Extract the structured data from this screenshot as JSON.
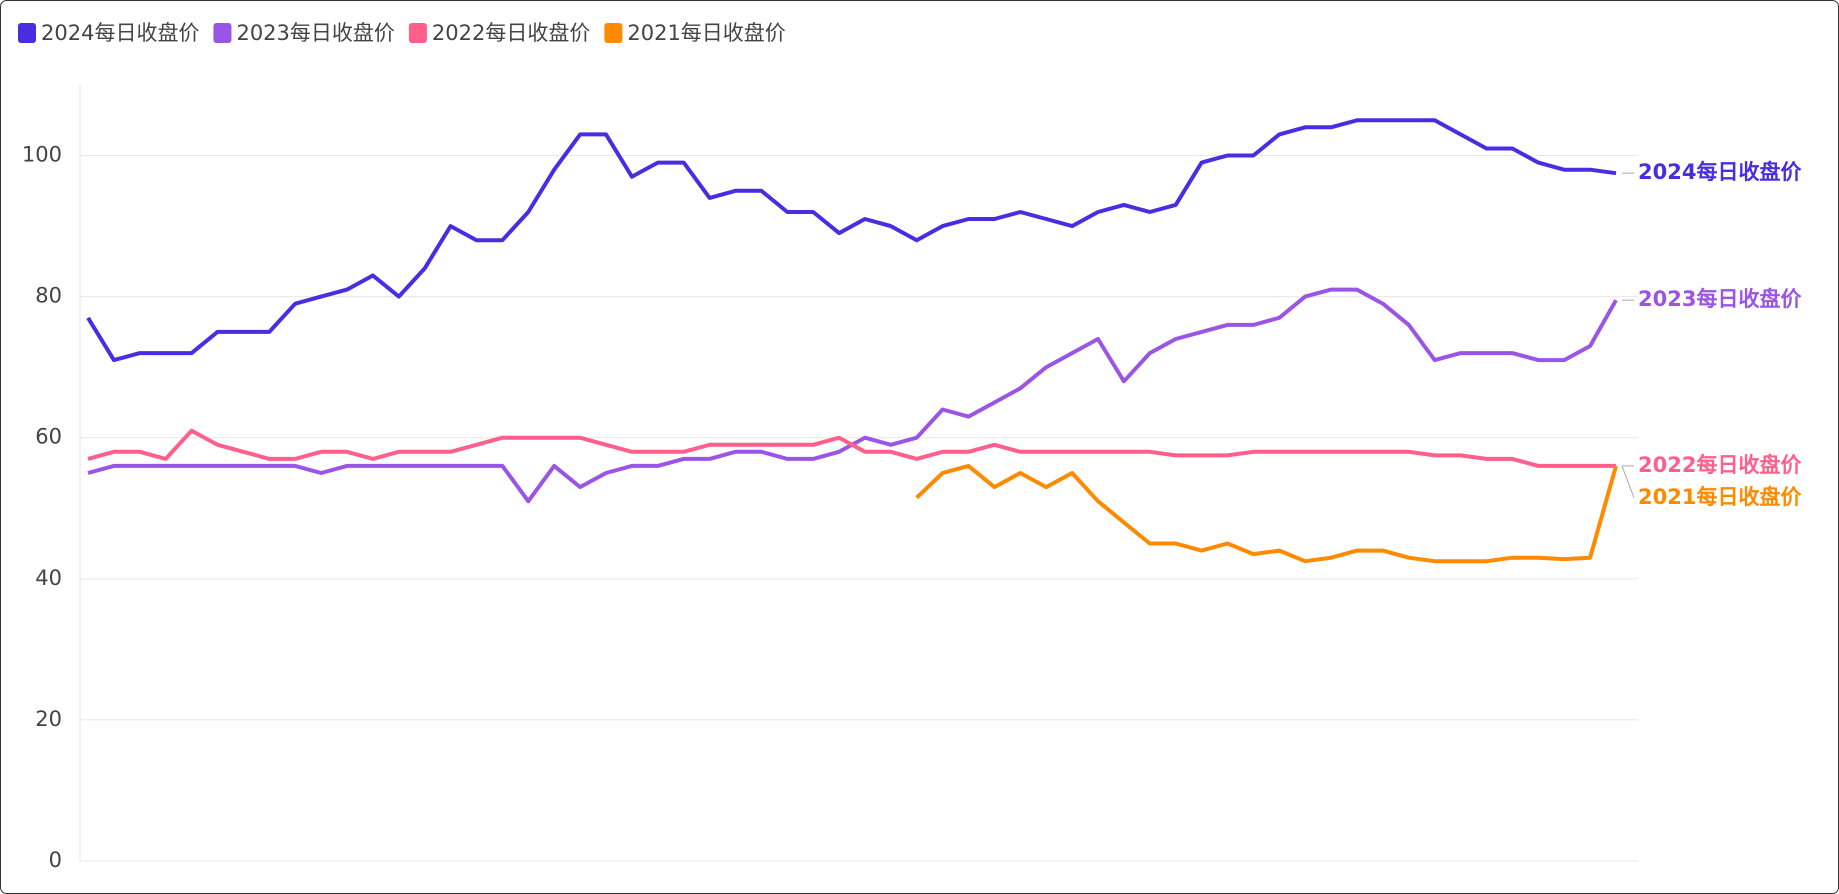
{
  "chart_data": {
    "type": "line",
    "categories": [
      null,
      null,
      null,
      null,
      null,
      null,
      null,
      null,
      null,
      null,
      null,
      null,
      null,
      null,
      null,
      null,
      null,
      null,
      null,
      null,
      null,
      null,
      null,
      null,
      null,
      null,
      null,
      null,
      null,
      null,
      null,
      null,
      null,
      null,
      null,
      null,
      null,
      null,
      null,
      null,
      null,
      null,
      null,
      null,
      null,
      null,
      null,
      null,
      null,
      null,
      null,
      null,
      null,
      null,
      null,
      null,
      null,
      null,
      null,
      null
    ],
    "series": [
      {
        "name": "2024每日收盘价",
        "color": "#4a2ce3",
        "values": [
          77,
          71,
          72,
          72,
          72,
          75,
          75,
          75,
          79,
          80,
          81,
          83,
          80,
          84,
          90,
          88,
          88,
          92,
          98,
          103,
          103,
          97,
          99,
          99,
          94,
          95,
          95,
          92,
          92,
          89,
          91,
          90,
          88,
          90,
          91,
          91,
          92,
          91,
          90,
          92,
          93,
          92,
          93,
          99,
          100,
          100,
          103,
          104,
          104,
          105,
          105,
          105,
          105,
          103,
          101,
          101,
          99,
          98,
          98,
          97.5
        ]
      },
      {
        "name": "2023每日收盘价",
        "color": "#9b55e6",
        "values": [
          55,
          56,
          56,
          56,
          56,
          56,
          56,
          56,
          56,
          55,
          56,
          56,
          56,
          56,
          56,
          56,
          56,
          51,
          56,
          53,
          55,
          56,
          56,
          57,
          57,
          58,
          58,
          57,
          57,
          58,
          60,
          59,
          60,
          64,
          63,
          65,
          67,
          70,
          72,
          74,
          68,
          72,
          74,
          75,
          76,
          76,
          77,
          80,
          81,
          81,
          79,
          76,
          71,
          72,
          72,
          72,
          71,
          71,
          73,
          79.5
        ]
      },
      {
        "name": "2022每日收盘价",
        "color": "#ff5f8a",
        "values": [
          57,
          58,
          58,
          57,
          61,
          59,
          58,
          57,
          57,
          58,
          58,
          57,
          58,
          58,
          58,
          59,
          60,
          60,
          60,
          60,
          59,
          58,
          58,
          58,
          59,
          59,
          59,
          59,
          59,
          60,
          58,
          58,
          57,
          58,
          58,
          59,
          58,
          58,
          58,
          58,
          58,
          58,
          57.5,
          57.5,
          57.5,
          58,
          58,
          58,
          58,
          58,
          58,
          58,
          57.5,
          57.5,
          57,
          57,
          56,
          56,
          56,
          56
        ]
      },
      {
        "name": "2021每日收盘价",
        "color": "#ff8a00",
        "values": [
          null,
          null,
          null,
          null,
          null,
          null,
          null,
          null,
          null,
          null,
          null,
          null,
          null,
          null,
          null,
          null,
          null,
          null,
          null,
          null,
          null,
          null,
          null,
          null,
          null,
          null,
          null,
          null,
          null,
          null,
          null,
          null,
          51.5,
          55,
          56,
          53,
          55,
          53,
          55,
          51,
          48,
          45,
          45,
          44,
          45,
          43.5,
          44,
          42.5,
          43,
          44,
          44,
          43,
          42.5,
          42.5,
          42.5,
          43,
          43,
          42.8,
          43,
          56
        ]
      }
    ],
    "ylim": [
      0,
      110
    ],
    "yticks": [
      0,
      20,
      40,
      60,
      80,
      100
    ],
    "grid": true,
    "legend": "top-left"
  }
}
